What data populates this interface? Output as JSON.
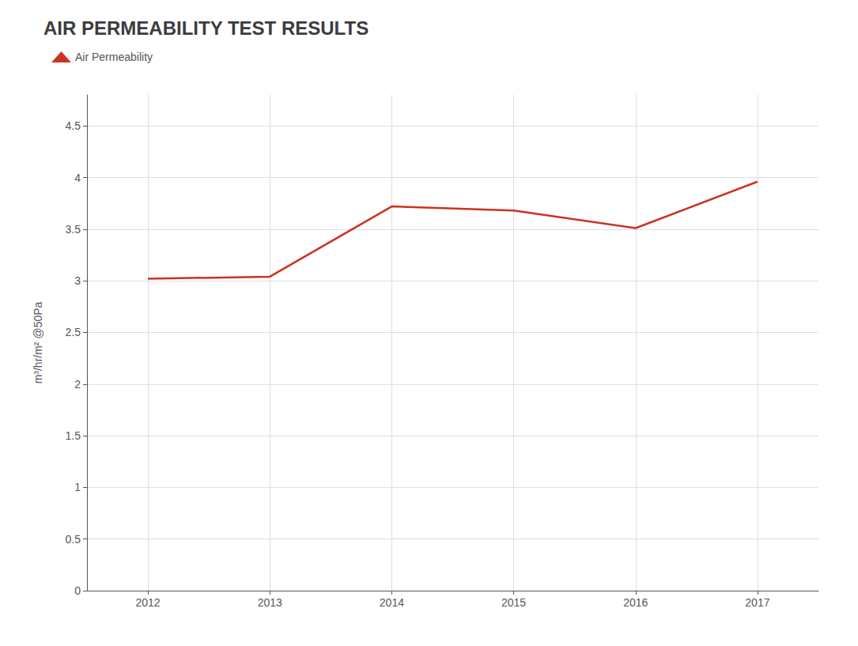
{
  "chart_data": {
    "type": "line",
    "title": "AIR PERMEABILITY TEST RESULTS",
    "ylabel": "m³/hr/m² @50Pa",
    "x": [
      2012,
      2013,
      2014,
      2015,
      2016,
      2017
    ],
    "series": [
      {
        "name": "Air Permeability",
        "color": "#cc3322",
        "values": [
          3.02,
          3.04,
          3.72,
          3.68,
          3.51,
          3.96
        ]
      }
    ],
    "xlim": [
      2011.5,
      2017.5
    ],
    "xticks": [
      2012,
      2013,
      2014,
      2015,
      2016,
      2017
    ],
    "ylim": [
      0,
      4.8
    ],
    "yticks": [
      0,
      0.5,
      1,
      1.5,
      2,
      2.5,
      3,
      3.5,
      4,
      4.5
    ],
    "grid": true,
    "legend": "top-left"
  }
}
